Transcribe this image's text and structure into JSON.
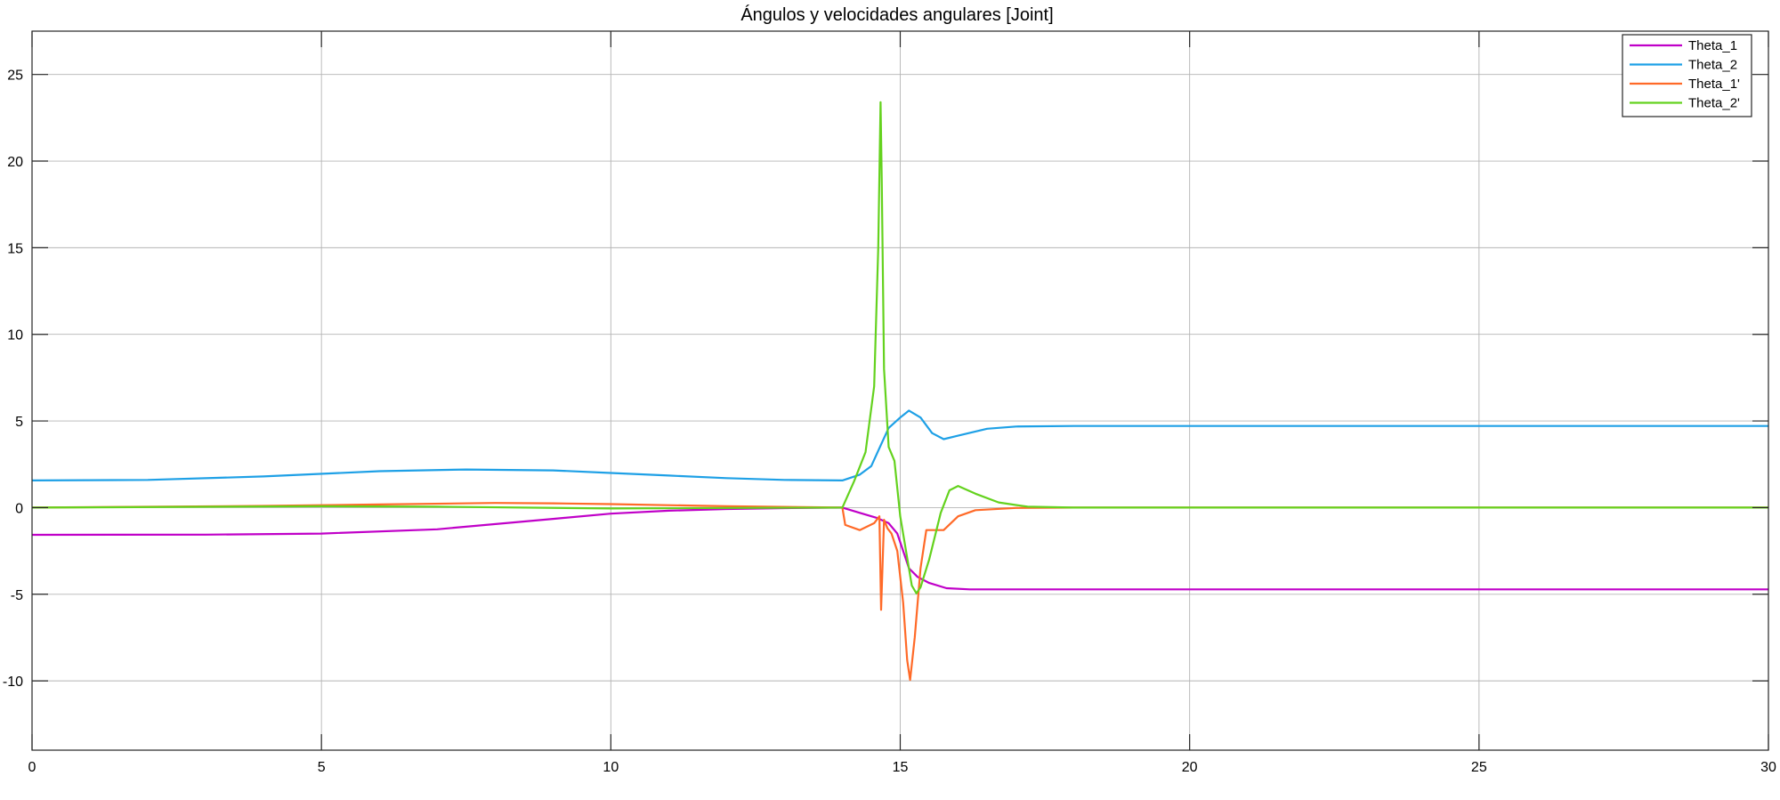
{
  "chart_data": {
    "type": "line",
    "title": "Ángulos y velocidades angulares [Joint]",
    "xlabel": "",
    "ylabel": "",
    "xlim": [
      0,
      30
    ],
    "ylim": [
      -14,
      27.5
    ],
    "xticks": [
      0,
      5,
      10,
      15,
      20,
      25,
      30
    ],
    "yticks": [
      -10,
      -5,
      0,
      5,
      10,
      15,
      20,
      25
    ],
    "grid": true,
    "legend_position": "top-right",
    "series": [
      {
        "name": "Theta_1",
        "color": "#c000c8",
        "x": [
          0,
          3,
          5,
          7,
          9,
          10,
          11,
          12,
          13,
          14,
          14.3,
          14.6,
          14.8,
          14.95,
          15.05,
          15.15,
          15.3,
          15.5,
          15.8,
          16.2,
          17,
          20,
          25,
          30
        ],
        "y": [
          -1.57,
          -1.56,
          -1.5,
          -1.25,
          -0.65,
          -0.35,
          -0.18,
          -0.08,
          -0.03,
          0,
          -0.3,
          -0.6,
          -0.9,
          -1.5,
          -2.5,
          -3.5,
          -4.0,
          -4.35,
          -4.65,
          -4.72,
          -4.72,
          -4.72,
          -4.72,
          -4.72
        ]
      },
      {
        "name": "Theta_2",
        "color": "#1ea0e6",
        "x": [
          0,
          2,
          4,
          6,
          7.5,
          9,
          10,
          11,
          12,
          13,
          14,
          14.3,
          14.5,
          14.65,
          14.8,
          15,
          15.15,
          15.35,
          15.55,
          15.75,
          16,
          16.5,
          17,
          18,
          20,
          25,
          30
        ],
        "y": [
          1.57,
          1.6,
          1.8,
          2.1,
          2.2,
          2.15,
          2.0,
          1.85,
          1.7,
          1.6,
          1.57,
          1.9,
          2.4,
          3.5,
          4.6,
          5.2,
          5.6,
          5.2,
          4.3,
          3.95,
          4.15,
          4.55,
          4.68,
          4.71,
          4.71,
          4.71,
          4.71
        ]
      },
      {
        "name": "Theta_1'",
        "color": "#ff6a28",
        "x": [
          0,
          4,
          6,
          8,
          9,
          10,
          12,
          14,
          14.05,
          14.3,
          14.55,
          14.64,
          14.67,
          14.72,
          14.78,
          14.85,
          14.95,
          15.05,
          15.12,
          15.17,
          15.25,
          15.35,
          15.45,
          15.6,
          15.75,
          16,
          16.3,
          17,
          18,
          30
        ],
        "y": [
          0,
          0.1,
          0.18,
          0.27,
          0.25,
          0.2,
          0.08,
          0,
          -1.0,
          -1.3,
          -0.9,
          -0.5,
          -5.9,
          -0.7,
          -1.2,
          -1.5,
          -2.5,
          -5.5,
          -8.8,
          -9.95,
          -7.5,
          -3.5,
          -1.3,
          -1.3,
          -1.3,
          -0.5,
          -0.15,
          -0.02,
          0,
          0
        ]
      },
      {
        "name": "Theta_2'",
        "color": "#64d21e",
        "x": [
          0,
          5,
          7,
          10,
          12,
          14,
          14.2,
          14.4,
          14.55,
          14.62,
          14.66,
          14.68,
          14.72,
          14.8,
          14.9,
          15.0,
          15.1,
          15.2,
          15.28,
          15.35,
          15.5,
          15.7,
          15.85,
          16,
          16.3,
          16.7,
          17.2,
          18,
          30
        ],
        "y": [
          0,
          0.08,
          0.05,
          -0.05,
          -0.02,
          0,
          1.5,
          3.2,
          7.0,
          15.0,
          23.4,
          19.0,
          8.0,
          3.5,
          2.7,
          -0.5,
          -2.5,
          -4.5,
          -4.95,
          -4.6,
          -3.0,
          -0.3,
          1.0,
          1.25,
          0.8,
          0.3,
          0.05,
          0,
          0
        ]
      }
    ]
  }
}
